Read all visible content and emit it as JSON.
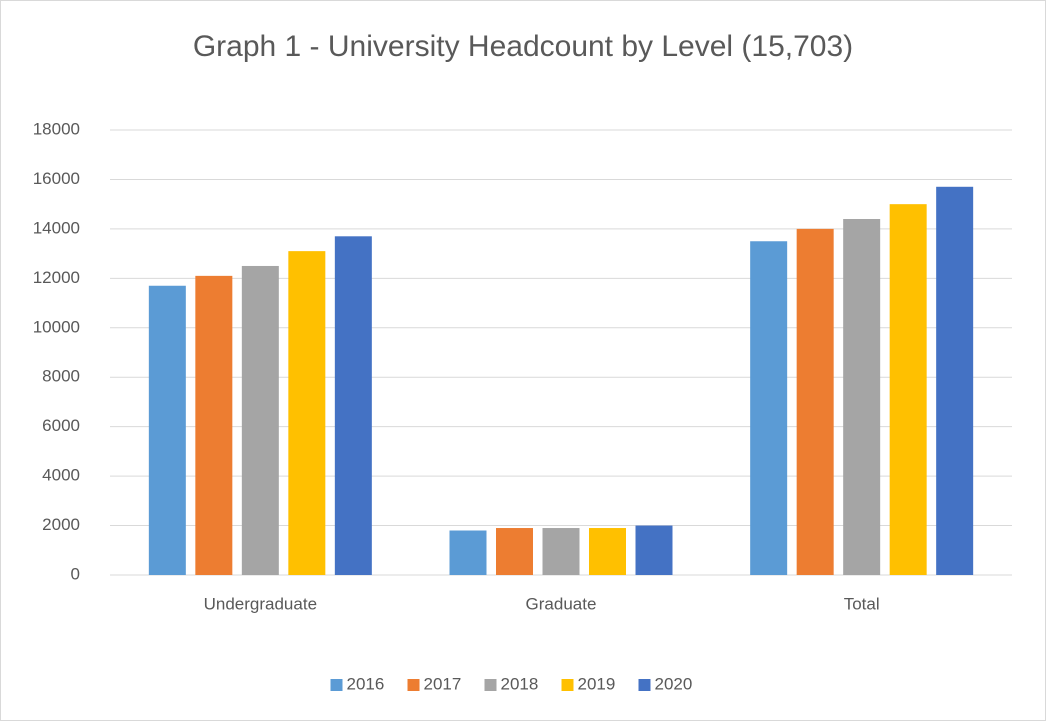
{
  "chart_data": {
    "type": "bar",
    "title": "Graph 1 - University Headcount by Level (15,703)",
    "categories": [
      "Undergraduate",
      "Graduate",
      "Total"
    ],
    "series": [
      {
        "name": "2016",
        "color": "#5b9bd5",
        "values": [
          11700,
          1800,
          13500
        ]
      },
      {
        "name": "2017",
        "color": "#ed7d31",
        "values": [
          12100,
          1900,
          14000
        ]
      },
      {
        "name": "2018",
        "color": "#a5a5a5",
        "values": [
          12500,
          1900,
          14400
        ]
      },
      {
        "name": "2019",
        "color": "#ffc000",
        "values": [
          13100,
          1900,
          15000
        ]
      },
      {
        "name": "2020",
        "color": "#4472c4",
        "values": [
          13700,
          2000,
          15703
        ]
      }
    ],
    "ylim": [
      0,
      18000
    ],
    "yticks": [
      0,
      2000,
      4000,
      6000,
      8000,
      10000,
      12000,
      14000,
      16000,
      18000
    ],
    "grid": true,
    "legend": "bottom"
  }
}
